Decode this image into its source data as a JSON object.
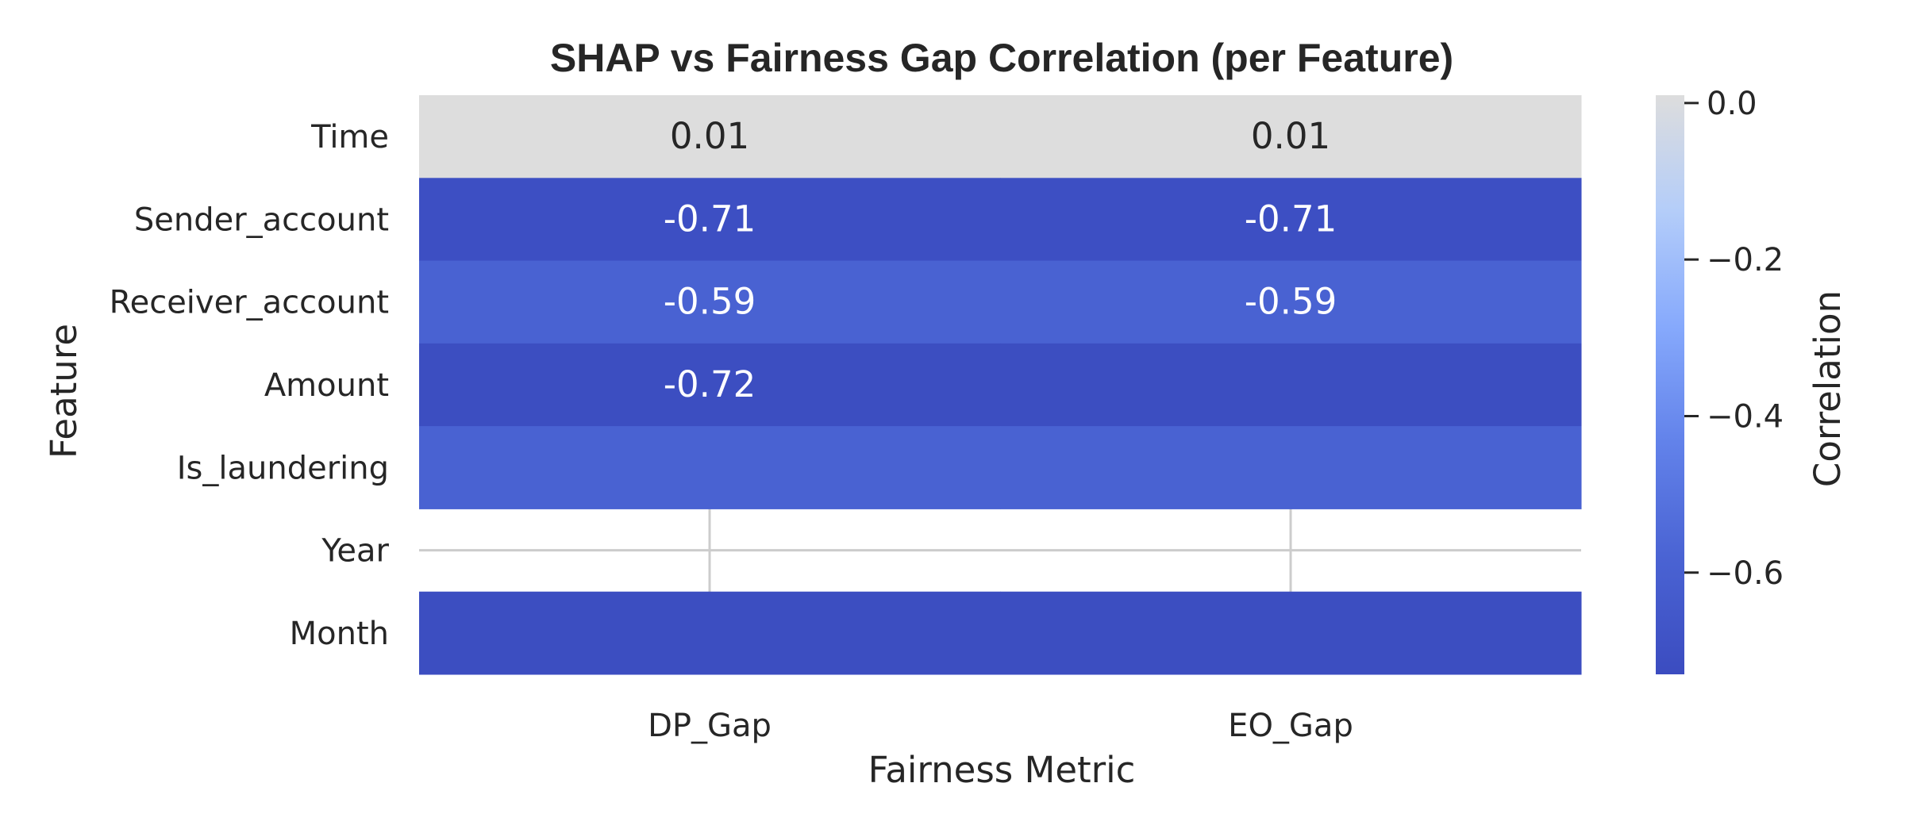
{
  "chart_data": {
    "type": "heatmap",
    "title": "SHAP vs Fairness Gap Correlation (per Feature)",
    "xlabel": "Fairness Metric",
    "ylabel": "Feature",
    "x_categories": [
      "DP_Gap",
      "EO_Gap"
    ],
    "y_categories": [
      "Time",
      "Sender_account",
      "Receiver_account",
      "Amount",
      "Is_laundering",
      "Year",
      "Month"
    ],
    "values": [
      [
        0.01,
        0.01
      ],
      [
        -0.71,
        -0.71
      ],
      [
        -0.59,
        -0.59
      ],
      [
        -0.72,
        -0.72
      ],
      [
        -0.59,
        -0.59
      ],
      [
        null,
        null
      ],
      [
        -0.72,
        -0.72
      ]
    ],
    "annotations": [
      [
        "0.01",
        "0.01"
      ],
      [
        "-0.71",
        "-0.71"
      ],
      [
        "-0.59",
        "-0.59"
      ],
      [
        "-0.72",
        ""
      ],
      [
        "",
        ""
      ],
      [
        "",
        ""
      ],
      [
        "",
        ""
      ]
    ],
    "colorbar": {
      "label": "Correlation",
      "range": [
        -0.73,
        0.01
      ],
      "ticks": [
        0.0,
        -0.2,
        -0.4,
        -0.6
      ],
      "tick_labels": [
        "0.0",
        "−0.2",
        "−0.4",
        "−0.6"
      ],
      "colormap": "coolwarm (lower half)"
    },
    "grid": true
  }
}
